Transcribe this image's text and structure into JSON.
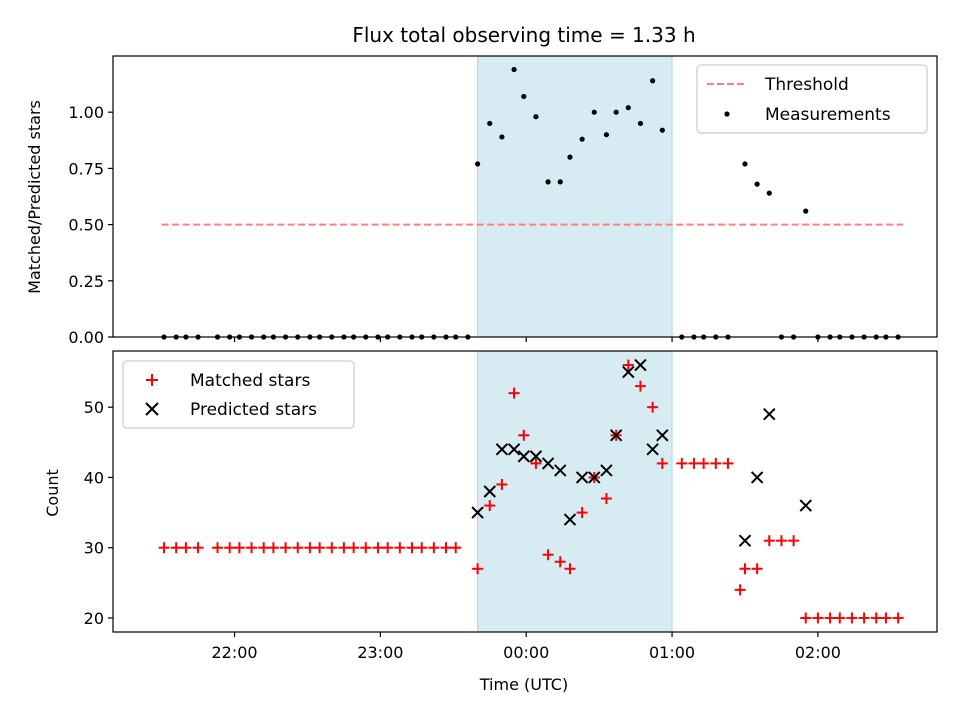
{
  "chart_data": [
    {
      "type": "scatter",
      "title": "Flux total observing time = 1.33 h",
      "ylabel": "Matched/Predicted stars",
      "xlabel": "",
      "x_unit": "hours UTC (values past 24 are after midnight)",
      "xlim": [
        "21:10",
        "02:49"
      ],
      "ylim": [
        0,
        1.25
      ],
      "yticks": [
        "0.00",
        "0.25",
        "0.50",
        "0.75",
        "1.00"
      ],
      "xticks": [
        "22:00",
        "23:00",
        "00:00",
        "01:00",
        "02:00"
      ],
      "highlight_span": [
        "23:40",
        "01:00"
      ],
      "highlight_color": "#add8e6",
      "legend_position": "upper right",
      "threshold": {
        "name": "Threshold",
        "value": 0.5,
        "x_range": [
          "21:30",
          "02:35"
        ],
        "color": "#ff7f7f",
        "style": "dashed"
      },
      "series": [
        {
          "name": "Measurements",
          "color": "#000000",
          "marker": "dot",
          "x": [
            "21:31",
            "21:36",
            "21:40",
            "21:45",
            "21:53",
            "21:58",
            "22:02",
            "22:07",
            "22:12",
            "22:16",
            "22:21",
            "22:26",
            "22:31",
            "22:35",
            "22:40",
            "22:45",
            "22:49",
            "22:54",
            "22:59",
            "23:03",
            "23:08",
            "23:13",
            "23:17",
            "23:22",
            "23:27",
            "23:31",
            "23:36",
            "23:40",
            "23:45",
            "23:50",
            "23:55",
            "23:59",
            "00:04",
            "00:09",
            "00:14",
            "00:18",
            "00:23",
            "00:28",
            "00:33",
            "00:37",
            "00:42",
            "00:47",
            "00:52",
            "00:56",
            "01:04",
            "01:09",
            "01:13",
            "01:18",
            "01:23",
            "01:30",
            "01:35",
            "01:40",
            "01:45",
            "01:50",
            "01:55",
            "02:00",
            "02:05",
            "02:09",
            "02:14",
            "02:19",
            "02:24",
            "02:28",
            "02:33"
          ],
          "y": [
            0,
            0,
            0,
            0,
            0,
            0,
            0,
            0,
            0,
            0,
            0,
            0,
            0,
            0,
            0,
            0,
            0,
            0,
            0,
            0,
            0,
            0,
            0,
            0,
            0,
            0,
            0,
            0.77,
            0.95,
            0.89,
            1.19,
            1.07,
            0.98,
            0.69,
            0.69,
            0.8,
            0.88,
            1.0,
            0.9,
            1.0,
            1.02,
            0.95,
            1.14,
            0.92,
            0,
            0,
            0,
            0,
            0,
            0.77,
            0.68,
            0.64,
            0,
            0,
            0.56,
            0,
            0,
            0,
            0,
            0,
            0,
            0,
            0
          ]
        }
      ]
    },
    {
      "type": "scatter",
      "title": "",
      "ylabel": "Count",
      "xlabel": "Time (UTC)",
      "x_unit": "hours UTC (values past 24 are after midnight)",
      "xlim": [
        "21:10",
        "02:49"
      ],
      "ylim": [
        18,
        58
      ],
      "yticks": [
        "20",
        "30",
        "40",
        "50"
      ],
      "xticks": [
        "22:00",
        "23:00",
        "00:00",
        "01:00",
        "02:00"
      ],
      "highlight_span": [
        "23:40",
        "01:00"
      ],
      "highlight_color": "#add8e6",
      "legend_position": "upper left",
      "series": [
        {
          "name": "Matched stars",
          "color": "#ff0000",
          "marker": "plus",
          "x": [
            "21:31",
            "21:36",
            "21:40",
            "21:45",
            "21:53",
            "21:58",
            "22:02",
            "22:07",
            "22:12",
            "22:16",
            "22:21",
            "22:26",
            "22:31",
            "22:35",
            "22:40",
            "22:45",
            "22:49",
            "22:54",
            "22:59",
            "23:03",
            "23:08",
            "23:13",
            "23:17",
            "23:22",
            "23:27",
            "23:31",
            "23:40",
            "23:45",
            "23:50",
            "23:55",
            "23:59",
            "00:04",
            "00:09",
            "00:14",
            "00:18",
            "00:23",
            "00:28",
            "00:33",
            "00:37",
            "00:42",
            "00:47",
            "00:52",
            "00:56",
            "01:04",
            "01:09",
            "01:13",
            "01:18",
            "01:23",
            "01:28",
            "01:30",
            "01:35",
            "01:40",
            "01:45",
            "01:50",
            "01:55",
            "02:00",
            "02:05",
            "02:09",
            "02:14",
            "02:19",
            "02:24",
            "02:28",
            "02:33"
          ],
          "y": [
            30,
            30,
            30,
            30,
            30,
            30,
            30,
            30,
            30,
            30,
            30,
            30,
            30,
            30,
            30,
            30,
            30,
            30,
            30,
            30,
            30,
            30,
            30,
            30,
            30,
            30,
            27,
            36,
            39,
            52,
            46,
            42,
            29,
            28,
            27,
            35,
            40,
            37,
            46,
            56,
            53,
            50,
            42,
            42,
            42,
            42,
            42,
            42,
            24,
            27,
            27,
            31,
            31,
            31,
            20,
            20,
            20,
            20,
            20,
            20,
            20,
            20,
            20
          ]
        },
        {
          "name": "Predicted stars",
          "color": "#000000",
          "marker": "x",
          "x": [
            "23:40",
            "23:45",
            "23:50",
            "23:55",
            "23:59",
            "00:04",
            "00:09",
            "00:14",
            "00:18",
            "00:23",
            "00:28",
            "00:33",
            "00:37",
            "00:42",
            "00:47",
            "00:52",
            "00:56",
            "01:30",
            "01:35",
            "01:40",
            "01:55"
          ],
          "y": [
            35,
            38,
            44,
            44,
            43,
            43,
            42,
            41,
            34,
            40,
            40,
            41,
            46,
            55,
            56,
            44,
            46,
            31,
            40,
            49,
            36
          ]
        }
      ]
    }
  ]
}
